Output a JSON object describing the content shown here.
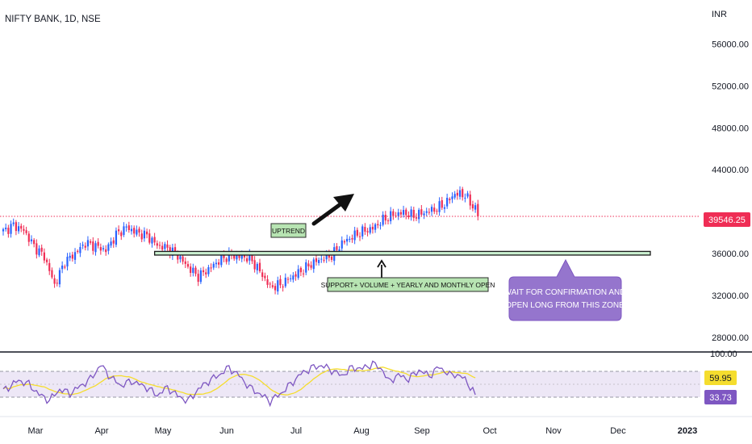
{
  "header": {
    "symbol": "NIFTY BANK, 1D, NSE"
  },
  "colors": {
    "up": "#2962ff",
    "down": "#ef2d55",
    "price_line": "#ef2d55",
    "zone_fill": "#c9efcf",
    "zone_border": "#1b1b1b",
    "rsi_line": "#7e57c2",
    "rsi_ma": "#f5dd2e",
    "rsi_band": "#ede7f6",
    "note_fill": "#9575cd",
    "tag_fill": "#b7e4b2"
  },
  "chart_data": [
    {
      "type": "candlestick",
      "title": "",
      "currency_label": "INR",
      "y_ticks": [
        28000,
        32000,
        36000,
        40000,
        44000,
        48000,
        52000,
        56000
      ],
      "y_tick_labels": [
        "28000.00",
        "32000.00",
        "36000.00",
        "",
        "44000.00",
        "48000.00",
        "52000.00",
        "56000.00"
      ],
      "ylim": [
        26600,
        60200
      ],
      "last_price": 39546.25,
      "last_price_label": "39546.25",
      "x_labels": [
        "Mar",
        "Apr",
        "May",
        "Jun",
        "Jul",
        "Aug",
        "Sep",
        "Oct",
        "Nov",
        "Dec",
        "2023"
      ],
      "close_path": [
        [
          0,
          38100
        ],
        [
          4,
          38700
        ],
        [
          8,
          38200
        ],
        [
          12,
          36700
        ],
        [
          16,
          35700
        ],
        [
          20,
          33000
        ],
        [
          24,
          35200
        ],
        [
          28,
          36000
        ],
        [
          32,
          37000
        ],
        [
          36,
          36700
        ],
        [
          40,
          36300
        ],
        [
          44,
          37800
        ],
        [
          48,
          38500
        ],
        [
          52,
          38000
        ],
        [
          56,
          37700
        ],
        [
          60,
          36800
        ],
        [
          64,
          36500
        ],
        [
          68,
          35800
        ],
        [
          72,
          34700
        ],
        [
          76,
          33800
        ],
        [
          80,
          34500
        ],
        [
          84,
          35300
        ],
        [
          88,
          35800
        ],
        [
          92,
          35700
        ],
        [
          96,
          35600
        ],
        [
          100,
          34300
        ],
        [
          104,
          32800
        ],
        [
          108,
          33000
        ],
        [
          112,
          33700
        ],
        [
          116,
          34300
        ],
        [
          120,
          35000
        ],
        [
          124,
          35500
        ],
        [
          128,
          35800
        ],
        [
          132,
          37000
        ],
        [
          136,
          37600
        ],
        [
          140,
          38100
        ],
        [
          144,
          38400
        ],
        [
          148,
          39200
        ],
        [
          152,
          39700
        ],
        [
          156,
          39900
        ],
        [
          160,
          39600
        ],
        [
          164,
          39900
        ],
        [
          168,
          40200
        ],
        [
          172,
          40700
        ],
        [
          176,
          41700
        ],
        [
          180,
          41600
        ],
        [
          182,
          40800
        ],
        [
          184,
          40300
        ],
        [
          185,
          39546
        ]
      ],
      "annotations": {
        "uptrend": "UPTREND",
        "support": "SUPPORT+ VOLUME + YEARLY AND MONTHLY OPEN",
        "note_line1": "WAIT FOR CONFIRMATION AND",
        "note_line2": "OPEN LONG FROM THIS ZONE",
        "zone": {
          "from_bar": 59,
          "low": 35850,
          "high": 36200
        }
      }
    },
    {
      "type": "line",
      "title": "",
      "ylim": [
        0,
        100
      ],
      "y_tick_labels": [
        "100.00"
      ],
      "band": [
        30,
        70
      ],
      "rsi_value": 33.73,
      "rsi_value_label": "33.73",
      "ma_value": 59.95,
      "ma_value_label": "59.95",
      "rsi_path": [
        [
          0,
          40
        ],
        [
          6,
          56
        ],
        [
          10,
          50
        ],
        [
          14,
          34
        ],
        [
          18,
          25
        ],
        [
          22,
          42
        ],
        [
          26,
          36
        ],
        [
          30,
          47
        ],
        [
          34,
          58
        ],
        [
          38,
          80
        ],
        [
          42,
          60
        ],
        [
          46,
          48
        ],
        [
          50,
          55
        ],
        [
          56,
          45
        ],
        [
          60,
          33
        ],
        [
          64,
          45
        ],
        [
          68,
          32
        ],
        [
          72,
          24
        ],
        [
          76,
          42
        ],
        [
          80,
          55
        ],
        [
          84,
          64
        ],
        [
          88,
          76
        ],
        [
          92,
          63
        ],
        [
          96,
          45
        ],
        [
          100,
          35
        ],
        [
          104,
          24
        ],
        [
          108,
          35
        ],
        [
          112,
          50
        ],
        [
          116,
          66
        ],
        [
          120,
          75
        ],
        [
          124,
          79
        ],
        [
          128,
          72
        ],
        [
          132,
          63
        ],
        [
          136,
          76
        ],
        [
          140,
          74
        ],
        [
          144,
          82
        ],
        [
          148,
          72
        ],
        [
          150,
          54
        ],
        [
          154,
          64
        ],
        [
          158,
          58
        ],
        [
          162,
          72
        ],
        [
          166,
          63
        ],
        [
          170,
          77
        ],
        [
          174,
          64
        ],
        [
          176,
          66
        ],
        [
          180,
          58
        ],
        [
          184,
          33.73
        ]
      ]
    }
  ]
}
